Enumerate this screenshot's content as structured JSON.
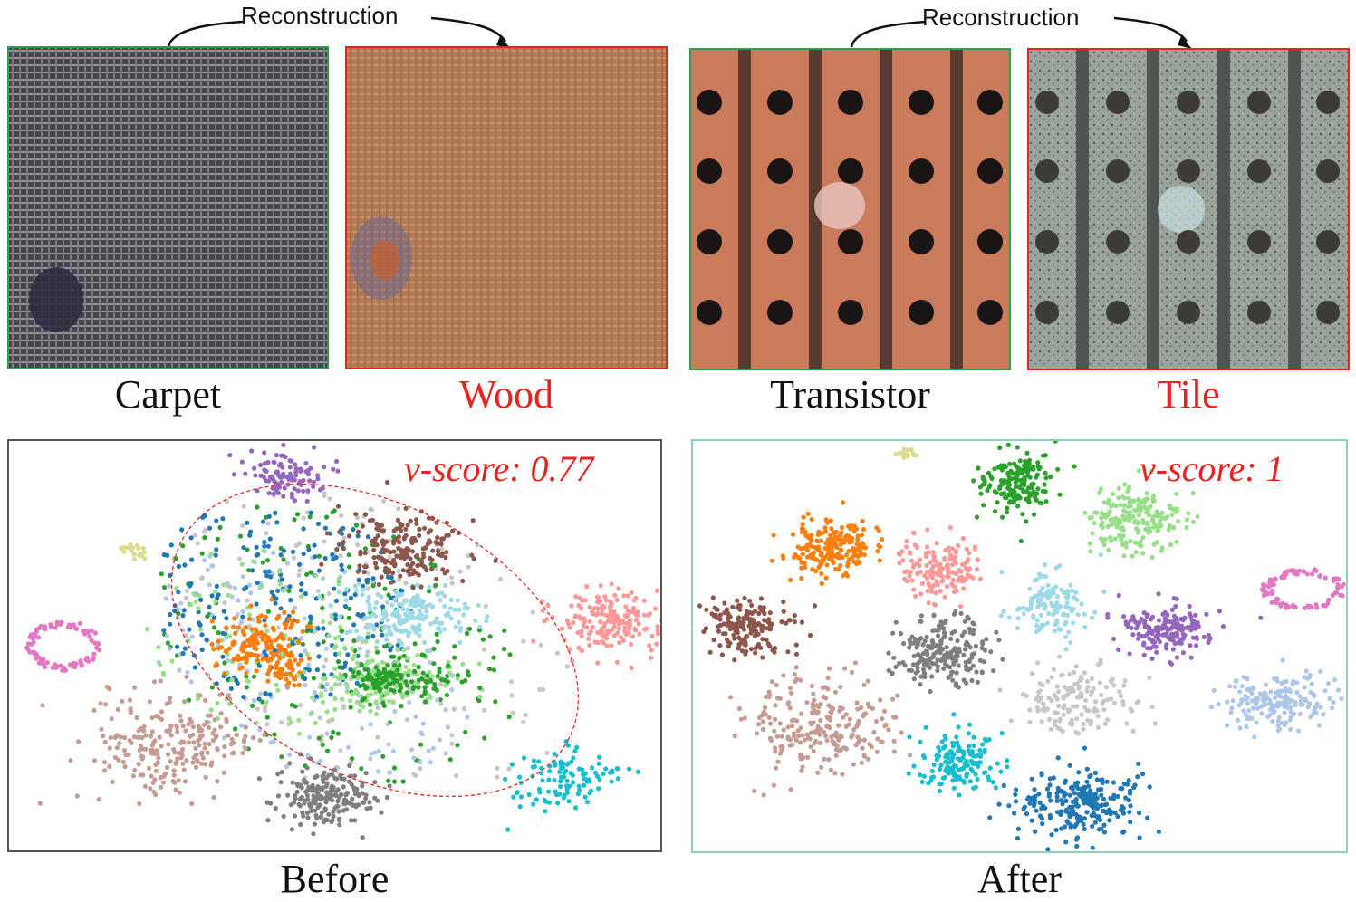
{
  "top": {
    "reconstruction_label": "Reconstruction",
    "images": [
      {
        "caption": "Carpet",
        "caption_color": "#111111",
        "frame_color": "#2e9e4b",
        "texture": "carpet-weave"
      },
      {
        "caption": "Wood",
        "caption_color": "#e8231f",
        "frame_color": "#e8231f",
        "texture": "reconstructed-wood-weave"
      },
      {
        "caption": "Transistor",
        "caption_color": "#111111",
        "frame_color": "#2e9e4b",
        "texture": "copper-board-holes"
      },
      {
        "caption": "Tile",
        "caption_color": "#e8231f",
        "frame_color": "#e8231f",
        "texture": "reconstructed-tile-holes"
      }
    ]
  },
  "bottom": {
    "before": {
      "caption": "Before",
      "vscore_label": "v-score",
      "vscore_value": ": 0.77",
      "frame_color": "#555555"
    },
    "after": {
      "caption": "After",
      "vscore_label": "v-score",
      "vscore_value": ": 1",
      "frame_color": "#8fd3b5"
    }
  },
  "palette": {
    "tab_blue": "#1f77b4",
    "tab_orange": "#ff7f0e",
    "tab_green": "#2ca02c",
    "light_green": "#98df8a",
    "light_blue": "#aec7e8",
    "light_cyan": "#9edae5",
    "cyan": "#17becf",
    "salmon": "#ff9896",
    "brown": "#8c564b",
    "tan": "#c49c94",
    "gray": "#7f7f7f",
    "light_gray": "#c7c7c7",
    "purple": "#9467bd",
    "pink": "#e377c2",
    "olive": "#dbdb8d"
  }
}
